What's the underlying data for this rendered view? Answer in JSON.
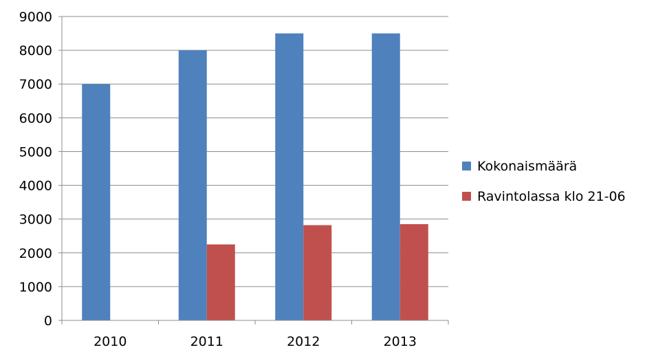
{
  "chart_data": {
    "type": "bar",
    "title": "",
    "xlabel": "",
    "ylabel": "",
    "categories": [
      "2010",
      "2011",
      "2012",
      "2013"
    ],
    "series": [
      {
        "name": "Kokonaismäärä",
        "color": "#4F81BD",
        "values": [
          7000,
          8000,
          8500,
          8500
        ]
      },
      {
        "name": "Ravintolassa klo 21-06",
        "color": "#C0504D",
        "values": [
          null,
          2250,
          2820,
          2850
        ]
      }
    ],
    "ylim": [
      0,
      9000
    ],
    "yticks": [
      "0",
      "1000",
      "2000",
      "3000",
      "4000",
      "5000",
      "6000",
      "7000",
      "8000",
      "9000"
    ],
    "grid": true,
    "legend": "right"
  }
}
